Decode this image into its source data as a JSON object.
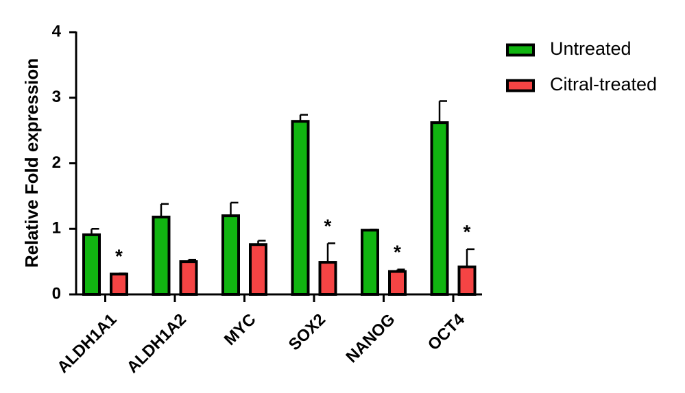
{
  "chart_data": {
    "type": "bar",
    "ylabel": "Relative Fold expression",
    "ylim": [
      0,
      4
    ],
    "yticks": [
      0,
      1,
      2,
      3,
      4
    ],
    "categories": [
      "ALDH1A1",
      "ALDH1A2",
      "MYC",
      "SOX2",
      "NANOG",
      "OCT4"
    ],
    "series": [
      {
        "name": "Untreated",
        "color": "#11b511",
        "values": [
          0.91,
          1.18,
          1.2,
          2.64,
          0.98,
          2.62
        ],
        "errors": [
          0.09,
          0.2,
          0.2,
          0.1,
          0.01,
          0.33
        ]
      },
      {
        "name": "Citral-treated",
        "color": "#f54444",
        "values": [
          0.31,
          0.5,
          0.76,
          0.49,
          0.35,
          0.42
        ],
        "errors": [
          0.01,
          0.03,
          0.06,
          0.29,
          0.03,
          0.27
        ]
      }
    ],
    "significance": {
      "symbol": "*",
      "categories": [
        "ALDH1A1",
        "SOX2",
        "NANOG",
        "OCT4"
      ]
    },
    "legend_position": "top-right",
    "grid": false
  }
}
